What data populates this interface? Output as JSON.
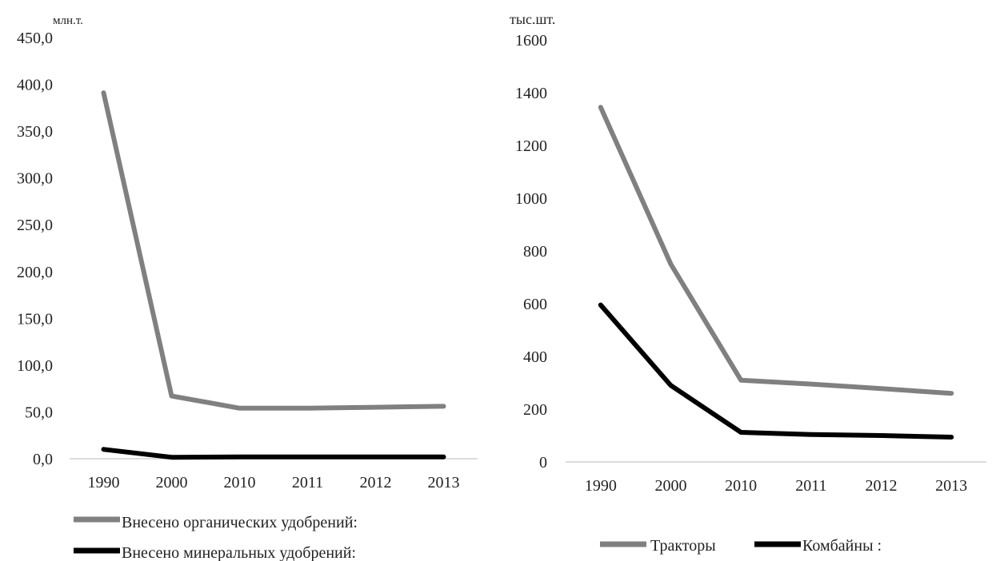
{
  "chart_data": [
    {
      "type": "line",
      "unit_label": "млн.т.",
      "categories": [
        "1990",
        "2000",
        "2010",
        "2011",
        "2012",
        "2013"
      ],
      "yticks": [
        "0,0",
        "50,0",
        "100,0",
        "150,0",
        "200,0",
        "250,0",
        "300,0",
        "350,0",
        "400,0",
        "450,0"
      ],
      "ylim": [
        0,
        450
      ],
      "grid": false,
      "legend": "bottom",
      "series": [
        {
          "name": "Внесено органических удобрений:",
          "values": [
            391,
            67,
            54,
            54,
            55,
            56
          ],
          "color": "#808080"
        },
        {
          "name": "Внесено минеральных удобрений:",
          "values": [
            10,
            1.5,
            1.9,
            2.0,
            1.9,
            2.0
          ],
          "color": "#000000"
        }
      ]
    },
    {
      "type": "line",
      "unit_label": "тыс.шт.",
      "categories": [
        "1990",
        "2000",
        "2010",
        "2011",
        "2012",
        "2013"
      ],
      "yticks": [
        "0",
        "200",
        "400",
        "600",
        "800",
        "1000",
        "1200",
        "1400",
        "1600"
      ],
      "ylim": [
        0,
        1600
      ],
      "grid": false,
      "legend": "bottom",
      "series": [
        {
          "name": "Тракторы",
          "values": [
            1345,
            750,
            310,
            295,
            278,
            260
          ],
          "color": "#808080"
        },
        {
          "name": "Комбайны :",
          "values": [
            595,
            290,
            112,
            104,
            100,
            94
          ],
          "color": "#000000"
        }
      ]
    }
  ]
}
